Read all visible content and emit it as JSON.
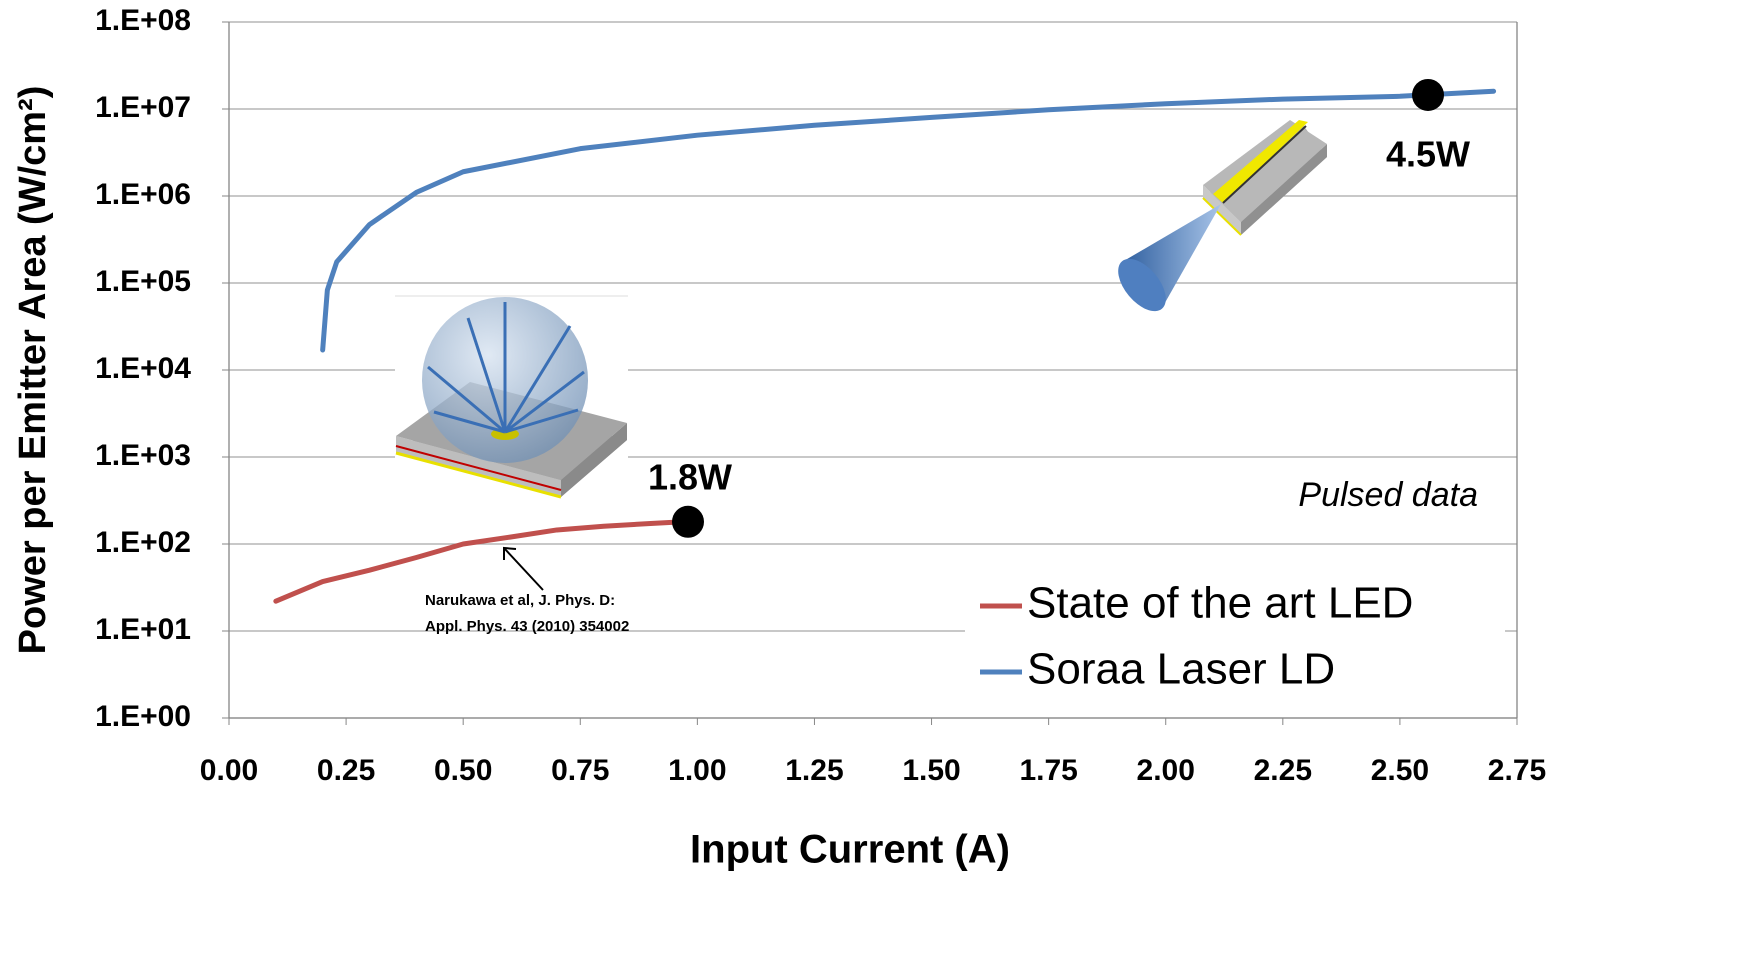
{
  "chart_data": {
    "type": "line",
    "x_label": "Input Current (A)",
    "y_label": "Power per Emitter Area  (W/cm²)",
    "log_y": true,
    "grid": true,
    "legend": "lower right",
    "xlim": [
      0,
      2.75
    ],
    "ylim": [
      1,
      100000000
    ],
    "xticks": [
      {
        "value": 0,
        "label": "0.00"
      },
      0.25,
      {
        "value": 0.5,
        "label": "0.50"
      },
      0.75,
      {
        "value": 1,
        "label": "1.00"
      },
      1.25,
      {
        "value": 1.5,
        "label": "1.50"
      },
      1.75,
      {
        "value": 2,
        "label": "2.00"
      },
      2.25,
      {
        "value": 2.5,
        "label": "2.50"
      },
      2.75
    ],
    "yticks": [
      {
        "value": 1,
        "label": "1.E+00"
      },
      {
        "value": 10,
        "label": "1.E+01"
      },
      {
        "value": 100,
        "label": "1.E+02"
      },
      {
        "value": 1000,
        "label": "1.E+03"
      },
      {
        "value": 10000,
        "label": "1.E+04"
      },
      {
        "value": 100000,
        "label": "1.E+05"
      },
      {
        "value": 1000000,
        "label": "1.E+06"
      },
      {
        "value": 10000000,
        "label": "1.E+07"
      },
      {
        "value": 100000000,
        "label": "1.E+08"
      }
    ],
    "series": [
      {
        "name": "State of the art LED",
        "color": "#c0504d",
        "x": [
          0.1,
          0.2,
          0.3,
          0.4,
          0.5,
          0.6,
          0.7,
          0.8,
          0.9,
          0.97
        ],
        "values": [
          22,
          37,
          50,
          70,
          100,
          120,
          145,
          160,
          172,
          180
        ]
      },
      {
        "name": "Soraa Laser LD",
        "color": "#4f81bd",
        "x": [
          0.2,
          0.21,
          0.23,
          0.3,
          0.4,
          0.5,
          0.75,
          1.0,
          1.25,
          1.5,
          1.75,
          2.0,
          2.25,
          2.5,
          2.7
        ],
        "values": [
          17000,
          83000,
          175000,
          470000,
          1100000,
          1900000,
          3500000,
          5000000,
          6500000,
          8000000,
          9800000,
          11500000,
          13000000,
          14000000,
          16000000
        ]
      }
    ],
    "markers": [
      {
        "x": 0.98,
        "y": 180,
        "label": "1.8W"
      },
      {
        "x": 2.56,
        "y": 14500000,
        "label": "4.5W"
      }
    ],
    "annotations": [
      "Pulsed data",
      "Narukawa et al, J. Phys. D:",
      "Appl. Phys. 43 (2010) 354002"
    ]
  }
}
